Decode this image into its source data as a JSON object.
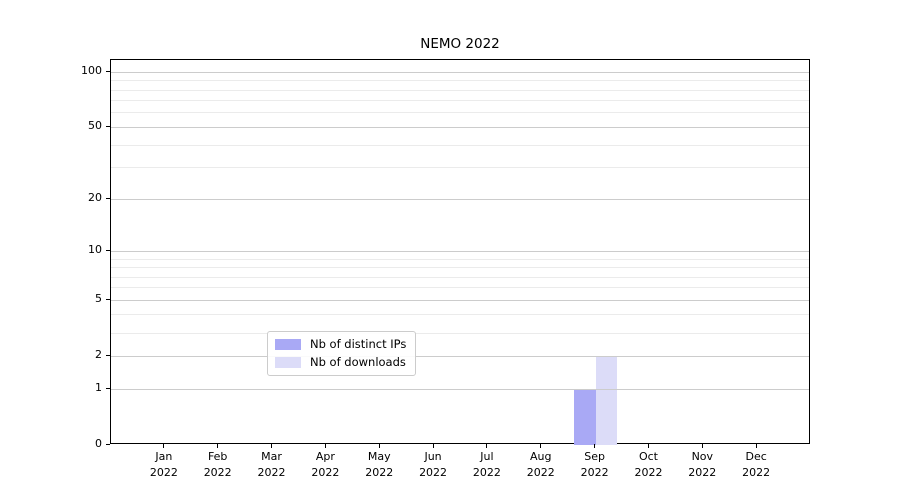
{
  "title": "NEMO 2022",
  "chart_data": {
    "type": "bar",
    "title": "NEMO 2022",
    "categories": [
      "Jan 2022",
      "Feb 2022",
      "Mar 2022",
      "Apr 2022",
      "May 2022",
      "Jun 2022",
      "Jul 2022",
      "Aug 2022",
      "Sep 2022",
      "Oct 2022",
      "Nov 2022",
      "Dec 2022"
    ],
    "series": [
      {
        "name": "Nb of distinct IPs",
        "color": "#a9a9f5",
        "values": [
          0,
          0,
          0,
          0,
          0,
          0,
          0,
          0,
          1,
          0,
          0,
          0
        ]
      },
      {
        "name": "Nb of downloads",
        "color": "#dcdcf8",
        "values": [
          0,
          0,
          0,
          0,
          0,
          0,
          0,
          0,
          2,
          0,
          0,
          0
        ]
      }
    ],
    "xlabel": "",
    "ylabel": "",
    "yscale": "log1p",
    "ylim": [
      0,
      118
    ],
    "yticks_major": [
      0,
      1,
      2,
      5,
      10,
      20,
      50,
      100
    ],
    "yticks_minor": [
      3,
      4,
      6,
      7,
      8,
      9,
      30,
      40,
      60,
      70,
      80,
      90
    ],
    "grid": true,
    "grid_major_color": "#cccccc",
    "grid_minor_color": "#ebebeb",
    "legend_position": "lower center",
    "axis_color": "#000000",
    "background_color": "#ffffff"
  }
}
